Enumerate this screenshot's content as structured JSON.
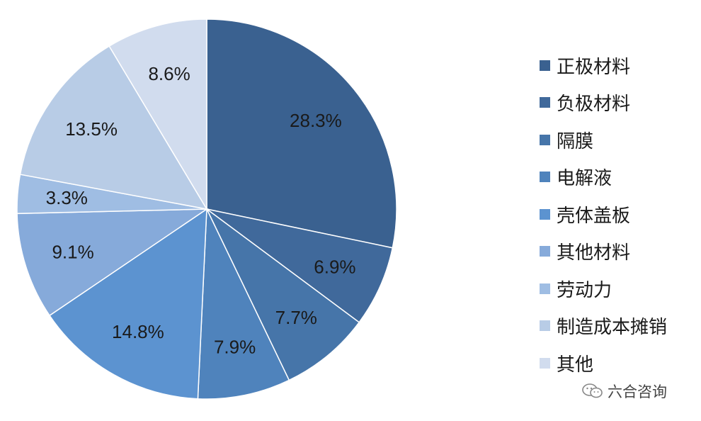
{
  "chart_data": {
    "type": "pie",
    "title": "",
    "categories": [
      "正极材料",
      "负极材料",
      "隔膜",
      "电解液",
      "壳体盖板",
      "其他材料",
      "劳动力",
      "制造成本摊销",
      "其他"
    ],
    "values": [
      28.3,
      6.9,
      7.7,
      7.9,
      14.8,
      9.1,
      3.3,
      13.5,
      8.6
    ],
    "labels": [
      "28.3%",
      "6.9%",
      "7.7%",
      "7.9%",
      "14.8%",
      "9.1%",
      "3.3%",
      "13.5%",
      "8.6%"
    ],
    "colors": [
      "#3a6190",
      "#40699b",
      "#4675a9",
      "#4f83bc",
      "#5c93d0",
      "#86aada",
      "#9fbde3",
      "#b8cce6",
      "#d1dcee"
    ],
    "legend_position": "right",
    "start": "top, clockwise"
  },
  "watermark": {
    "text": "六合咨询",
    "icon": "wechat-icon"
  }
}
